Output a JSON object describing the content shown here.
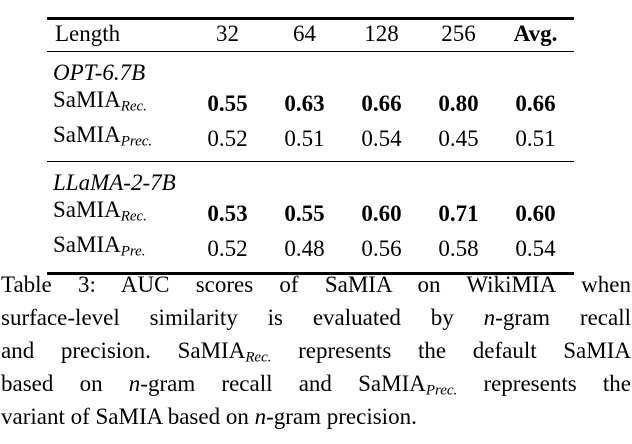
{
  "page": {
    "background_color": "#ffffff",
    "text_color": "#000000",
    "rule_color": "#000000"
  },
  "table": {
    "header": [
      "Length",
      "32",
      "64",
      "128",
      "256",
      "Avg."
    ],
    "groups": [
      {
        "model": "OPT-6.7B",
        "rows": [
          {
            "base": "SaMIA",
            "sub": "Rec.",
            "bold": true,
            "values": [
              "0.55",
              "0.63",
              "0.66",
              "0.80",
              "0.66"
            ]
          },
          {
            "base": "SaMIA",
            "sub": "Prec.",
            "bold": false,
            "values": [
              "0.52",
              "0.51",
              "0.54",
              "0.45",
              "0.51"
            ]
          }
        ]
      },
      {
        "model": "LLaMA-2-7B",
        "rows": [
          {
            "base": "SaMIA",
            "sub": "Rec.",
            "bold": true,
            "values": [
              "0.53",
              "0.55",
              "0.60",
              "0.71",
              "0.60"
            ]
          },
          {
            "base": "SaMIA",
            "sub": "Pre.",
            "bold": false,
            "values": [
              "0.52",
              "0.48",
              "0.56",
              "0.58",
              "0.54"
            ]
          }
        ]
      }
    ]
  },
  "caption": {
    "lines": [
      [
        {
          "t": "Table 3: AUC scores of SaMIA on WikiMIA when",
          "s": "r"
        }
      ],
      [
        {
          "t": "surface-level similarity is evaluated by ",
          "s": "r"
        },
        {
          "t": "n",
          "s": "i"
        },
        {
          "t": "-gram recall",
          "s": "r"
        }
      ],
      [
        {
          "t": "and precision. SaMIA",
          "s": "r"
        },
        {
          "t": "Rec.",
          "s": "sub"
        },
        {
          "t": " represents the default SaMIA",
          "s": "r"
        }
      ],
      [
        {
          "t": "based on ",
          "s": "r"
        },
        {
          "t": "n",
          "s": "i"
        },
        {
          "t": "-gram recall and SaMIA",
          "s": "r"
        },
        {
          "t": "Prec.",
          "s": "sub"
        },
        {
          "t": " represents the",
          "s": "r"
        }
      ],
      [
        {
          "t": "variant of SaMIA based on ",
          "s": "r"
        },
        {
          "t": "n",
          "s": "i"
        },
        {
          "t": "-gram precision.",
          "s": "r"
        }
      ]
    ]
  }
}
